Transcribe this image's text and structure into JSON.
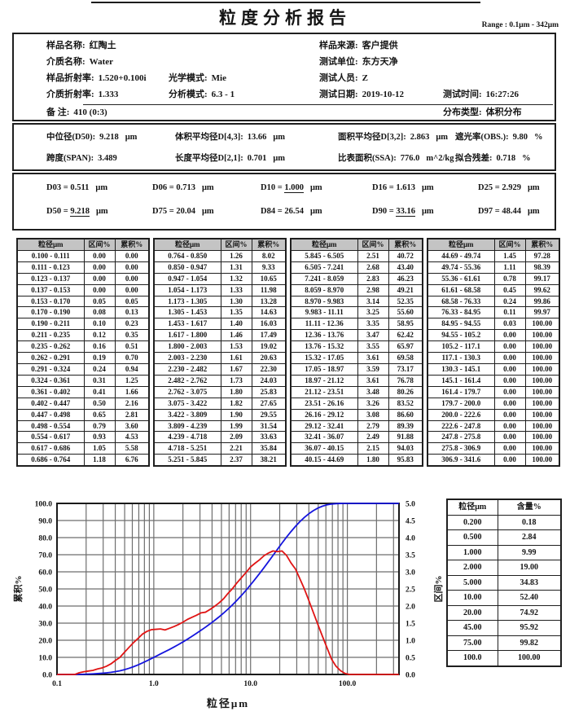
{
  "page": {
    "title": "粒度分析报告",
    "range_label": "Range : 0.1μm - 342μm"
  },
  "info": {
    "sample_name": {
      "label": "样品名称:",
      "value": "红陶土"
    },
    "sample_source": {
      "label": "样品来源:",
      "value": "客户提供"
    },
    "medium_name": {
      "label": "介质名称:",
      "value": "Water"
    },
    "test_unit": {
      "label": "测试单位:",
      "value": "东方天净"
    },
    "sample_ri": {
      "label": "样品折射率:",
      "value": "1.520+0.100i"
    },
    "optical_mode": {
      "label": "光学模式:",
      "value": "Mie"
    },
    "tester": {
      "label": "测试人员:",
      "value": "Z"
    },
    "medium_ri": {
      "label": "介质折射率:",
      "value": "1.333"
    },
    "analysis_mode": {
      "label": "分析模式:",
      "value": "6.3 - 1"
    },
    "test_date": {
      "label": "测试日期:",
      "value": "2019-10-12"
    },
    "test_time": {
      "label": "测试时间:",
      "value": "16:27:26"
    },
    "note": {
      "label": "备  注:",
      "value": "410  (0:3)"
    },
    "dist_type": {
      "label": "分布类型:",
      "value": "体积分布"
    }
  },
  "summary": {
    "rows": [
      [
        {
          "label": "中位径(D50):",
          "value": "9.218",
          "unit": "μm"
        },
        {
          "label": "体积平均径D[4,3]:",
          "value": "13.66",
          "unit": "μm"
        },
        {
          "label": "面积平均径D[3,2]:",
          "value": "2.863",
          "unit": "μm"
        },
        {
          "label": "遮光率(OBS.):",
          "value": "9.80",
          "unit": "%"
        }
      ],
      [
        {
          "label": "跨度(SPAN):",
          "value": "3.489",
          "unit": ""
        },
        {
          "label": "长度平均径D[2,1]:",
          "value": "0.701",
          "unit": "μm"
        },
        {
          "label": "比表面积(SSA):",
          "value": "776.0",
          "unit": "m^2/kg"
        },
        {
          "label": "拟合残差:",
          "value": "0.718",
          "unit": "%"
        }
      ]
    ]
  },
  "dvalues": {
    "separator": "=",
    "rows": [
      [
        {
          "name": "D03",
          "value": "0.511",
          "unit": "μm",
          "underline": false
        },
        {
          "name": "D06",
          "value": "0.713",
          "unit": "μm",
          "underline": false
        },
        {
          "name": "D10",
          "value": "1.000",
          "unit": "μm",
          "underline": true
        },
        {
          "name": "D16",
          "value": "1.613",
          "unit": "μm",
          "underline": false
        },
        {
          "name": "D25",
          "value": "2.929",
          "unit": "μm",
          "underline": false
        }
      ],
      [
        {
          "name": "D50",
          "value": "9.218",
          "unit": "μm",
          "underline": true
        },
        {
          "name": "D75",
          "value": "20.04",
          "unit": "μm",
          "underline": false
        },
        {
          "name": "D84",
          "value": "26.54",
          "unit": "μm",
          "underline": false
        },
        {
          "name": "D90",
          "value": "33.16",
          "unit": "μm",
          "underline": true
        },
        {
          "name": "D97",
          "value": "48.44",
          "unit": "μm",
          "underline": false
        }
      ]
    ]
  },
  "distribution_table": {
    "headers": [
      "粒径μm",
      "区间%",
      "累积%"
    ],
    "groups": [
      [
        [
          "0.100 - 0.111",
          "0.00",
          "0.00"
        ],
        [
          "0.111 - 0.123",
          "0.00",
          "0.00"
        ],
        [
          "0.123 - 0.137",
          "0.00",
          "0.00"
        ],
        [
          "0.137 - 0.153",
          "0.00",
          "0.00"
        ],
        [
          "0.153 - 0.170",
          "0.05",
          "0.05"
        ],
        [
          "0.170 - 0.190",
          "0.08",
          "0.13"
        ],
        [
          "0.190 - 0.211",
          "0.10",
          "0.23"
        ],
        [
          "0.211 - 0.235",
          "0.12",
          "0.35"
        ],
        [
          "0.235 - 0.262",
          "0.16",
          "0.51"
        ],
        [
          "0.262 - 0.291",
          "0.19",
          "0.70"
        ],
        [
          "0.291 - 0.324",
          "0.24",
          "0.94"
        ],
        [
          "0.324 - 0.361",
          "0.31",
          "1.25"
        ],
        [
          "0.361 - 0.402",
          "0.41",
          "1.66"
        ],
        [
          "0.402 - 0.447",
          "0.50",
          "2.16"
        ],
        [
          "0.447 - 0.498",
          "0.65",
          "2.81"
        ],
        [
          "0.498 - 0.554",
          "0.79",
          "3.60"
        ],
        [
          "0.554 - 0.617",
          "0.93",
          "4.53"
        ],
        [
          "0.617 - 0.686",
          "1.05",
          "5.58"
        ],
        [
          "0.686 - 0.764",
          "1.18",
          "6.76"
        ]
      ],
      [
        [
          "0.764 - 0.850",
          "1.26",
          "8.02"
        ],
        [
          "0.850 - 0.947",
          "1.31",
          "9.33"
        ],
        [
          "0.947 - 1.054",
          "1.32",
          "10.65"
        ],
        [
          "1.054 - 1.173",
          "1.33",
          "11.98"
        ],
        [
          "1.173 - 1.305",
          "1.30",
          "13.28"
        ],
        [
          "1.305 - 1.453",
          "1.35",
          "14.63"
        ],
        [
          "1.453 - 1.617",
          "1.40",
          "16.03"
        ],
        [
          "1.617 - 1.800",
          "1.46",
          "17.49"
        ],
        [
          "1.800 - 2.003",
          "1.53",
          "19.02"
        ],
        [
          "2.003 - 2.230",
          "1.61",
          "20.63"
        ],
        [
          "2.230 - 2.482",
          "1.67",
          "22.30"
        ],
        [
          "2.482 - 2.762",
          "1.73",
          "24.03"
        ],
        [
          "2.762 - 3.075",
          "1.80",
          "25.83"
        ],
        [
          "3.075 - 3.422",
          "1.82",
          "27.65"
        ],
        [
          "3.422 - 3.809",
          "1.90",
          "29.55"
        ],
        [
          "3.809 - 4.239",
          "1.99",
          "31.54"
        ],
        [
          "4.239 - 4.718",
          "2.09",
          "33.63"
        ],
        [
          "4.718 - 5.251",
          "2.21",
          "35.84"
        ],
        [
          "5.251 - 5.845",
          "2.37",
          "38.21"
        ]
      ],
      [
        [
          "5.845 - 6.505",
          "2.51",
          "40.72"
        ],
        [
          "6.505 - 7.241",
          "2.68",
          "43.40"
        ],
        [
          "7.241 - 8.059",
          "2.83",
          "46.23"
        ],
        [
          "8.059 - 8.970",
          "2.98",
          "49.21"
        ],
        [
          "8.970 - 9.983",
          "3.14",
          "52.35"
        ],
        [
          "9.983 - 11.11",
          "3.25",
          "55.60"
        ],
        [
          "11.11 - 12.36",
          "3.35",
          "58.95"
        ],
        [
          "12.36 - 13.76",
          "3.47",
          "62.42"
        ],
        [
          "13.76 - 15.32",
          "3.55",
          "65.97"
        ],
        [
          "15.32 - 17.05",
          "3.61",
          "69.58"
        ],
        [
          "17.05 - 18.97",
          "3.59",
          "73.17"
        ],
        [
          "18.97 - 21.12",
          "3.61",
          "76.78"
        ],
        [
          "21.12 - 23.51",
          "3.48",
          "80.26"
        ],
        [
          "23.51 - 26.16",
          "3.26",
          "83.52"
        ],
        [
          "26.16 - 29.12",
          "3.08",
          "86.60"
        ],
        [
          "29.12 - 32.41",
          "2.79",
          "89.39"
        ],
        [
          "32.41 - 36.07",
          "2.49",
          "91.88"
        ],
        [
          "36.07 - 40.15",
          "2.15",
          "94.03"
        ],
        [
          "40.15 - 44.69",
          "1.80",
          "95.83"
        ]
      ],
      [
        [
          "44.69 - 49.74",
          "1.45",
          "97.28"
        ],
        [
          "49.74 - 55.36",
          "1.11",
          "98.39"
        ],
        [
          "55.36 - 61.61",
          "0.78",
          "99.17"
        ],
        [
          "61.61 - 68.58",
          "0.45",
          "99.62"
        ],
        [
          "68.58 - 76.33",
          "0.24",
          "99.86"
        ],
        [
          "76.33 - 84.95",
          "0.11",
          "99.97"
        ],
        [
          "84.95 - 94.55",
          "0.03",
          "100.00"
        ],
        [
          "94.55 - 105.2",
          "0.00",
          "100.00"
        ],
        [
          "105.2 - 117.1",
          "0.00",
          "100.00"
        ],
        [
          "117.1 - 130.3",
          "0.00",
          "100.00"
        ],
        [
          "130.3 - 145.1",
          "0.00",
          "100.00"
        ],
        [
          "145.1 - 161.4",
          "0.00",
          "100.00"
        ],
        [
          "161.4 - 179.7",
          "0.00",
          "100.00"
        ],
        [
          "179.7 - 200.0",
          "0.00",
          "100.00"
        ],
        [
          "200.0 - 222.6",
          "0.00",
          "100.00"
        ],
        [
          "222.6 - 247.8",
          "0.00",
          "100.00"
        ],
        [
          "247.8 - 275.8",
          "0.00",
          "100.00"
        ],
        [
          "275.8 - 306.9",
          "0.00",
          "100.00"
        ],
        [
          "306.9 - 341.6",
          "0.00",
          "100.00"
        ]
      ]
    ]
  },
  "side_table": {
    "headers": [
      "粒径μm",
      "含量%"
    ],
    "rows": [
      [
        "0.200",
        "0.18"
      ],
      [
        "0.500",
        "2.84"
      ],
      [
        "1.000",
        "9.99"
      ],
      [
        "2.000",
        "19.00"
      ],
      [
        "5.000",
        "34.83"
      ],
      [
        "10.00",
        "52.40"
      ],
      [
        "20.00",
        "74.92"
      ],
      [
        "45.00",
        "95.92"
      ],
      [
        "75.00",
        "99.82"
      ],
      [
        "100.0",
        "100.00"
      ]
    ]
  },
  "chart_data": {
    "type": "line",
    "x_scale": "log",
    "xlabel": "粒径μm",
    "ylabel_left": "累积%",
    "ylabel_right": "区间%",
    "xlim": [
      0.1,
      341.6
    ],
    "ylim_left": [
      0,
      100
    ],
    "ylim_right": [
      0,
      5
    ],
    "grid": true,
    "x_ticks": [
      {
        "value": 0.1,
        "label": "0.1"
      },
      {
        "value": 1.0,
        "label": "1.0"
      },
      {
        "value": 10.0,
        "label": "10.0"
      },
      {
        "value": 100.0,
        "label": "100.0"
      }
    ],
    "y_ticks_left": [
      {
        "value": 0,
        "label": "0.0"
      },
      {
        "value": 10,
        "label": "10.0"
      },
      {
        "value": 20,
        "label": "20.0"
      },
      {
        "value": 30,
        "label": "30.0"
      },
      {
        "value": 40,
        "label": "40.0"
      },
      {
        "value": 50,
        "label": "50.0"
      },
      {
        "value": 60,
        "label": "60.0"
      },
      {
        "value": 70,
        "label": "70.0"
      },
      {
        "value": 80,
        "label": "80.0"
      },
      {
        "value": 90,
        "label": "90.0"
      },
      {
        "value": 100,
        "label": "100.0"
      }
    ],
    "y_ticks_right": [
      {
        "value": 0.0,
        "label": "0.0"
      },
      {
        "value": 0.5,
        "label": "0.5"
      },
      {
        "value": 1.0,
        "label": "1.0"
      },
      {
        "value": 1.5,
        "label": "1.5"
      },
      {
        "value": 2.0,
        "label": "2.0"
      },
      {
        "value": 2.5,
        "label": "2.5"
      },
      {
        "value": 3.0,
        "label": "3.0"
      },
      {
        "value": 3.5,
        "label": "3.5"
      },
      {
        "value": 4.0,
        "label": "4.0"
      },
      {
        "value": 4.5,
        "label": "4.5"
      },
      {
        "value": 5.0,
        "label": "5.0"
      }
    ],
    "bin_edges": [
      0.1,
      0.111,
      0.123,
      0.137,
      0.153,
      0.17,
      0.19,
      0.211,
      0.235,
      0.262,
      0.291,
      0.324,
      0.361,
      0.402,
      0.447,
      0.498,
      0.554,
      0.617,
      0.686,
      0.764,
      0.85,
      0.947,
      1.054,
      1.173,
      1.305,
      1.453,
      1.617,
      1.8,
      2.003,
      2.23,
      2.482,
      2.762,
      3.075,
      3.422,
      3.809,
      4.239,
      4.718,
      5.251,
      5.845,
      6.505,
      7.241,
      8.059,
      8.97,
      9.983,
      11.11,
      12.36,
      13.76,
      15.32,
      17.05,
      18.97,
      21.12,
      23.51,
      26.16,
      29.12,
      32.41,
      36.07,
      40.15,
      44.69,
      49.74,
      55.36,
      61.61,
      68.58,
      76.33,
      84.95,
      94.55,
      105.2,
      117.1,
      130.3,
      145.1,
      161.4,
      179.7,
      200.0,
      222.6,
      247.8,
      275.8,
      306.9,
      341.6
    ],
    "series": [
      {
        "name": "累积%",
        "axis": "left",
        "color": "#1515dd",
        "values": [
          0.0,
          0.0,
          0.0,
          0.0,
          0.05,
          0.13,
          0.23,
          0.35,
          0.51,
          0.7,
          0.94,
          1.25,
          1.66,
          2.16,
          2.81,
          3.6,
          4.53,
          5.58,
          6.76,
          8.02,
          9.33,
          10.65,
          11.98,
          13.28,
          14.63,
          16.03,
          17.49,
          19.02,
          20.63,
          22.3,
          24.03,
          25.83,
          27.65,
          29.55,
          31.54,
          33.63,
          35.84,
          38.21,
          40.72,
          43.4,
          46.23,
          49.21,
          52.35,
          55.6,
          58.95,
          62.42,
          65.97,
          69.58,
          73.17,
          76.78,
          80.26,
          83.52,
          86.6,
          89.39,
          91.88,
          94.03,
          95.83,
          97.28,
          98.39,
          99.17,
          99.62,
          99.86,
          99.97,
          100.0,
          100.0,
          100.0,
          100.0,
          100.0,
          100.0,
          100.0,
          100.0,
          100.0,
          100.0,
          100.0,
          100.0,
          100.0
        ]
      },
      {
        "name": "区间%",
        "axis": "right",
        "color": "#e01414",
        "values": [
          0.0,
          0.0,
          0.0,
          0.0,
          0.05,
          0.08,
          0.1,
          0.12,
          0.16,
          0.19,
          0.24,
          0.31,
          0.41,
          0.5,
          0.65,
          0.79,
          0.93,
          1.05,
          1.18,
          1.26,
          1.31,
          1.32,
          1.33,
          1.3,
          1.35,
          1.4,
          1.46,
          1.53,
          1.61,
          1.67,
          1.73,
          1.8,
          1.82,
          1.9,
          1.99,
          2.09,
          2.21,
          2.37,
          2.51,
          2.68,
          2.83,
          2.98,
          3.14,
          3.25,
          3.35,
          3.47,
          3.55,
          3.61,
          3.59,
          3.61,
          3.48,
          3.26,
          3.08,
          2.79,
          2.49,
          2.15,
          1.8,
          1.45,
          1.11,
          0.78,
          0.45,
          0.24,
          0.11,
          0.03,
          0.0,
          0.0,
          0.0,
          0.0,
          0.0,
          0.0,
          0.0,
          0.0,
          0.0,
          0.0,
          0.0,
          0.0
        ]
      }
    ]
  }
}
